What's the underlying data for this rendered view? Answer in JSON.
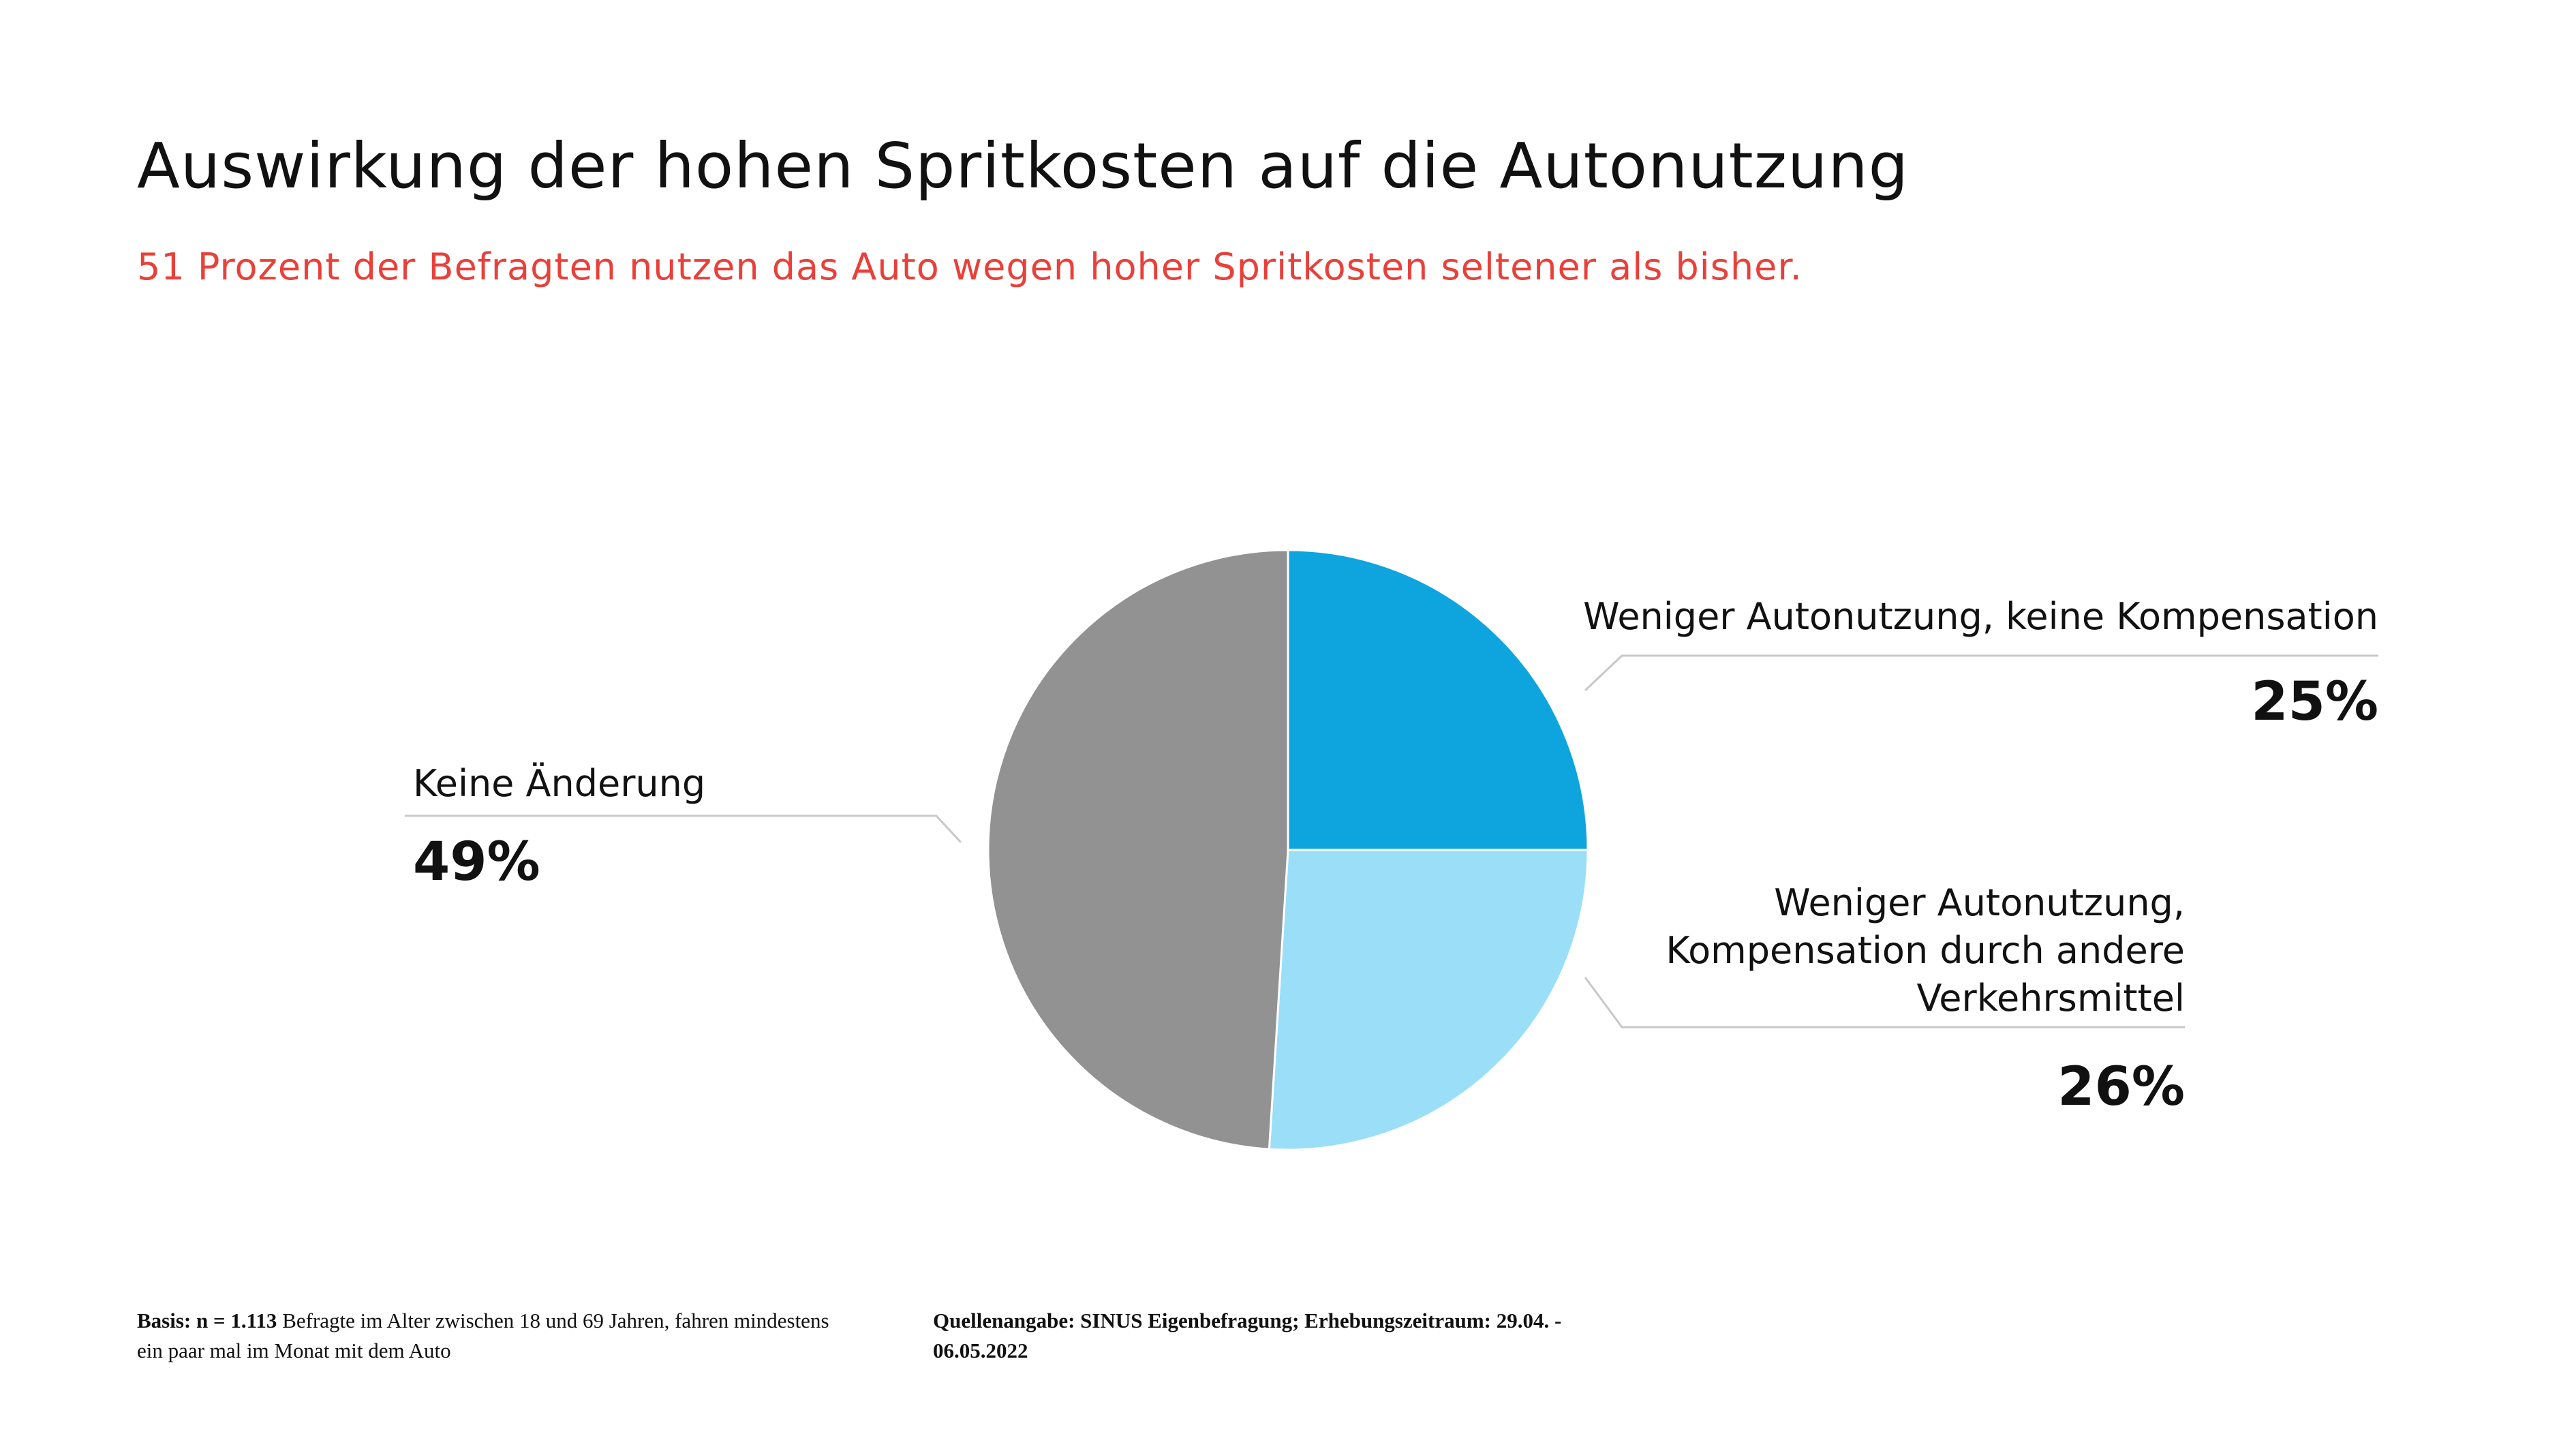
{
  "header": {
    "title": "Auswirkung der hohen Spritkosten auf die Autonutzung",
    "subtitle": "51 Prozent der Befragten nutzen das Auto wegen hoher Spritkosten seltener als bisher."
  },
  "chart_data": {
    "type": "pie",
    "title": "Auswirkung der hohen Spritkosten auf die Autonutzung",
    "slices": [
      {
        "label": "Weniger Autonutzung, keine Kompensation",
        "value": 25,
        "display": "25%",
        "color": "#0ea5df"
      },
      {
        "label": "Weniger Autonutzung, Kompensation durch andere Verkehrsmittel",
        "label_lines": [
          "Weniger Autonutzung,",
          "Kompensation durch andere",
          "Verkehrsmittel"
        ],
        "value": 26,
        "display": "26%",
        "color": "#9bdef8"
      },
      {
        "label": "Keine Änderung",
        "value": 49,
        "display": "49%",
        "color": "#929292"
      }
    ],
    "start": "top",
    "direction": "clockwise",
    "legend": "none"
  },
  "footer": {
    "basis_bold": "Basis: n = 1.113",
    "basis_text": " Befragte im Alter zwischen 18 und 69 Jahren, fahren mindestens ein paar mal im Monat mit dem Auto",
    "source": "Quellenangabe: SINUS Eigenbefragung; Erhebungszeitraum: 29.04. - 06.05.2022"
  }
}
